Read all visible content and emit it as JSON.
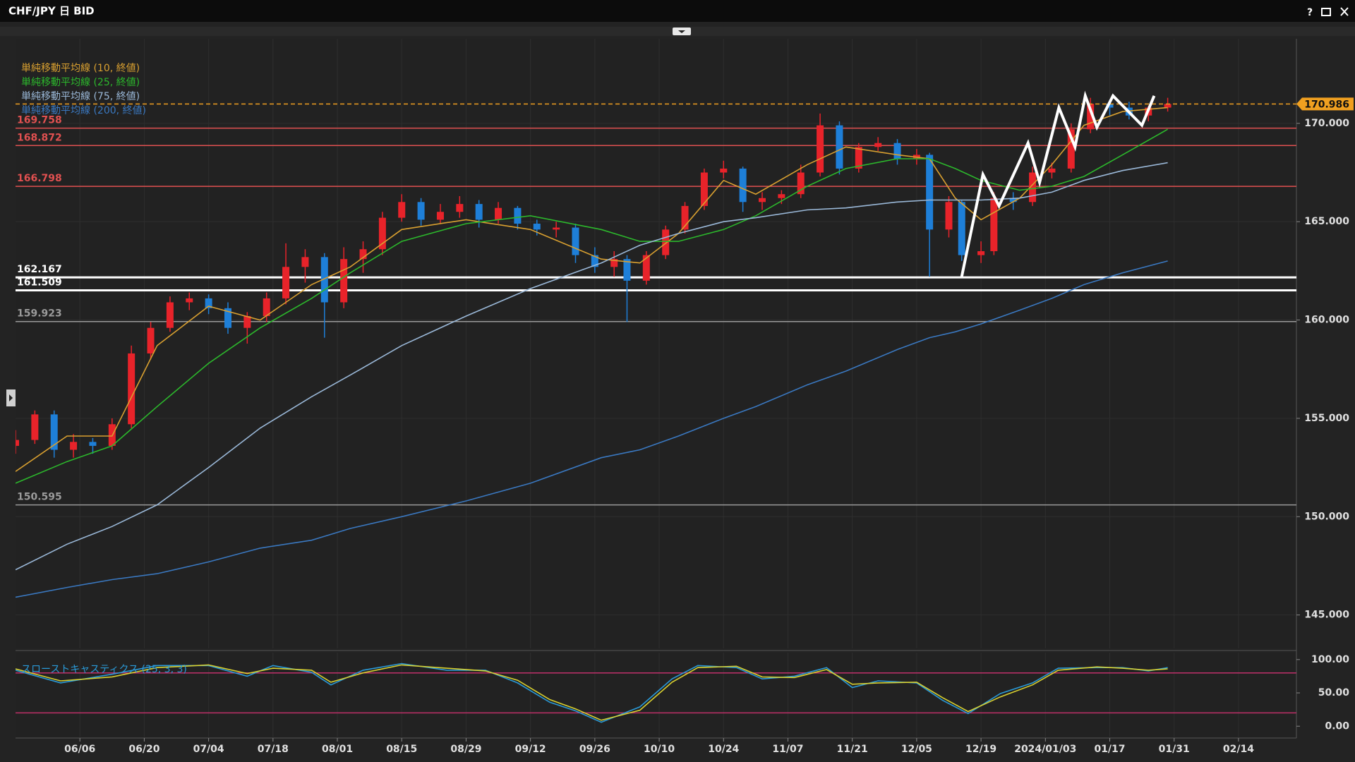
{
  "window": {
    "help": "?"
  },
  "chart_data": {
    "type": "candlestick",
    "title": "CHF/JPY 日 BID",
    "up_color": "#e8232a",
    "down_color": "#1e7fd8",
    "x": [
      0,
      3,
      6,
      9,
      12,
      15,
      18,
      21,
      24,
      27,
      30,
      33,
      36,
      39,
      42,
      45,
      48,
      51,
      54,
      57,
      60,
      63,
      66,
      69,
      72,
      75,
      78,
      81,
      84,
      87,
      90,
      93,
      95,
      98,
      101,
      104,
      107,
      110,
      113,
      116,
      119,
      122,
      125,
      128,
      131,
      134,
      137,
      140,
      142,
      145,
      147,
      150,
      152,
      155,
      158,
      161,
      164,
      167,
      170,
      173,
      176,
      179
    ],
    "open": [
      153.6,
      153.9,
      155.2,
      153.4,
      153.8,
      153.6,
      154.7,
      158.3,
      159.6,
      160.9,
      161.1,
      160.6,
      159.6,
      160.2,
      161.1,
      162.7,
      163.2,
      160.9,
      163.1,
      163.6,
      165.2,
      166.0,
      165.1,
      165.5,
      165.9,
      165.1,
      165.7,
      164.9,
      164.6,
      164.7,
      163.3,
      162.7,
      163.1,
      162.0,
      163.3,
      164.6,
      165.8,
      167.5,
      167.7,
      166.0,
      166.2,
      166.4,
      167.5,
      169.9,
      167.7,
      168.8,
      169.0,
      168.2,
      168.4,
      164.6,
      166.0,
      163.3,
      163.5,
      166.2,
      166.0,
      167.5,
      167.7,
      169.7,
      171.0,
      170.8,
      170.4,
      170.8
    ],
    "high": [
      154.4,
      155.4,
      155.4,
      154.2,
      154.0,
      155.0,
      158.7,
      159.9,
      161.2,
      161.4,
      161.3,
      160.9,
      160.4,
      161.4,
      163.9,
      163.6,
      163.4,
      163.7,
      164.0,
      165.5,
      166.4,
      166.2,
      165.9,
      166.3,
      166.1,
      166.0,
      165.8,
      165.1,
      165.0,
      164.9,
      163.7,
      163.5,
      163.3,
      163.5,
      164.8,
      166.0,
      167.7,
      168.1,
      167.8,
      166.5,
      166.6,
      167.9,
      170.5,
      170.1,
      169.0,
      169.3,
      169.2,
      168.7,
      168.5,
      166.3,
      166.1,
      164.0,
      166.5,
      166.5,
      167.8,
      168.0,
      170.0,
      171.3,
      171.2,
      171.1,
      170.9,
      171.3
    ],
    "low": [
      153.2,
      153.7,
      153.0,
      153.0,
      153.2,
      153.4,
      154.5,
      158.0,
      159.4,
      160.5,
      160.3,
      159.3,
      158.8,
      159.9,
      160.8,
      161.9,
      159.1,
      160.6,
      162.4,
      163.3,
      165.0,
      164.8,
      164.9,
      165.2,
      164.7,
      164.9,
      164.6,
      164.3,
      164.2,
      162.9,
      162.4,
      162.2,
      159.9,
      161.8,
      163.1,
      164.4,
      165.6,
      167.2,
      165.5,
      165.6,
      165.9,
      166.2,
      167.3,
      167.4,
      167.5,
      168.6,
      167.9,
      167.9,
      162.2,
      164.2,
      163.0,
      162.9,
      163.3,
      165.6,
      165.8,
      167.2,
      167.5,
      169.5,
      170.4,
      170.2,
      170.1,
      170.6
    ],
    "close": [
      153.9,
      155.2,
      153.4,
      153.8,
      153.6,
      154.7,
      158.3,
      159.6,
      160.9,
      161.1,
      160.6,
      159.6,
      160.2,
      161.1,
      162.7,
      163.2,
      160.9,
      163.1,
      163.6,
      165.2,
      166.0,
      165.1,
      165.5,
      165.9,
      165.1,
      165.7,
      164.9,
      164.6,
      164.7,
      163.3,
      162.7,
      163.1,
      162.0,
      163.3,
      164.6,
      165.8,
      167.5,
      167.7,
      166.0,
      166.2,
      166.4,
      167.5,
      169.9,
      167.7,
      168.8,
      169.0,
      168.2,
      168.4,
      164.6,
      166.0,
      163.3,
      163.5,
      166.2,
      166.0,
      167.5,
      167.7,
      169.7,
      171.0,
      170.8,
      170.4,
      170.8,
      170.986
    ],
    "xlim": [
      0,
      199
    ],
    "ylim": [
      143.3,
      174.3
    ],
    "xticks": [
      {
        "value": 10,
        "label": "06/06"
      },
      {
        "value": 20,
        "label": "06/20"
      },
      {
        "value": 30,
        "label": "07/04"
      },
      {
        "value": 40,
        "label": "07/18"
      },
      {
        "value": 50,
        "label": "08/01"
      },
      {
        "value": 60,
        "label": "08/15"
      },
      {
        "value": 70,
        "label": "08/29"
      },
      {
        "value": 80,
        "label": "09/12"
      },
      {
        "value": 90,
        "label": "09/26"
      },
      {
        "value": 100,
        "label": "10/10"
      },
      {
        "value": 110,
        "label": "10/24"
      },
      {
        "value": 120,
        "label": "11/07"
      },
      {
        "value": 130,
        "label": "11/21"
      },
      {
        "value": 140,
        "label": "12/05"
      },
      {
        "value": 150,
        "label": "12/19"
      },
      {
        "value": 160,
        "label": "2024/01/03"
      },
      {
        "value": 170,
        "label": "01/17"
      },
      {
        "value": 180,
        "label": "01/31"
      },
      {
        "value": 190,
        "label": "02/14"
      }
    ],
    "yticks": [
      {
        "value": 145,
        "label": "145.000"
      },
      {
        "value": 150,
        "label": "150.000"
      },
      {
        "value": 155,
        "label": "155.000"
      },
      {
        "value": 160,
        "label": "160.000"
      },
      {
        "value": 165,
        "label": "165.000"
      },
      {
        "value": 170,
        "label": "170.000"
      }
    ],
    "grid": true,
    "current_price": 170.986,
    "current_price_color": "#f0a020",
    "levels": [
      {
        "value": 169.758,
        "color": "#e05050"
      },
      {
        "value": 168.872,
        "color": "#e05050"
      },
      {
        "value": 166.798,
        "color": "#e05050"
      },
      {
        "value": 162.167,
        "color": "#ffffff"
      },
      {
        "value": 161.509,
        "color": "#ffffff"
      },
      {
        "value": 159.923,
        "color": "#9a9a9a"
      },
      {
        "value": 150.595,
        "color": "#9a9a9a"
      }
    ],
    "moving_averages": {
      "x": [
        0,
        8,
        15,
        22,
        30,
        38,
        46,
        52,
        60,
        70,
        80,
        91,
        97,
        103,
        110,
        115,
        123,
        129,
        137,
        142,
        146,
        150,
        156,
        161,
        166,
        172,
        179
      ],
      "series": [
        {
          "name": "単純移動平均線 (10, 終値)",
          "color": "#d9a030",
          "values": [
            152.3,
            154.1,
            154.1,
            158.7,
            160.7,
            160.0,
            161.8,
            162.7,
            164.6,
            165.1,
            164.6,
            163.1,
            162.9,
            164.4,
            167.1,
            166.4,
            167.9,
            168.8,
            168.4,
            168.2,
            166.2,
            165.1,
            166.2,
            167.9,
            169.9,
            170.6,
            170.8
          ]
        },
        {
          "name": "単純移動平均線 (25, 終値)",
          "color": "#2cb82c",
          "values": [
            151.7,
            152.8,
            153.6,
            155.6,
            157.8,
            159.6,
            161.1,
            162.4,
            164.0,
            164.9,
            165.3,
            164.6,
            164.0,
            164.0,
            164.6,
            165.3,
            166.8,
            167.7,
            168.2,
            168.2,
            167.7,
            167.1,
            166.6,
            166.8,
            167.3,
            168.4,
            169.7
          ]
        },
        {
          "name": "単純移動平均線 (75, 終値)",
          "color": "#9ab8d8",
          "values": [
            147.3,
            148.6,
            149.5,
            150.6,
            152.5,
            154.5,
            156.1,
            157.2,
            158.7,
            160.2,
            161.6,
            162.9,
            163.8,
            164.4,
            165.0,
            165.2,
            165.6,
            165.7,
            166.0,
            166.1,
            166.1,
            166.1,
            166.2,
            166.5,
            167.1,
            167.6,
            168.0
          ]
        },
        {
          "name": "単純移動平均線 (200, 終値)",
          "color": "#3a78c0",
          "values": [
            145.9,
            146.4,
            146.8,
            147.1,
            147.7,
            148.4,
            148.8,
            149.4,
            150.0,
            150.8,
            151.7,
            153.0,
            153.4,
            154.1,
            155.0,
            155.6,
            156.7,
            157.4,
            158.5,
            159.1,
            159.4,
            159.8,
            160.5,
            161.1,
            161.8,
            162.4,
            163.0
          ]
        }
      ]
    },
    "annotation": {
      "color": "#ffffff",
      "x": [
        147.0,
        150.3,
        152.8,
        157.3,
        159.1,
        162.1,
        164.6,
        166.2,
        168.0,
        170.5,
        175.0,
        176.9
      ],
      "y": [
        162.2,
        167.4,
        165.8,
        169.0,
        167.0,
        170.8,
        168.8,
        171.4,
        169.8,
        171.4,
        169.9,
        171.4
      ]
    },
    "stochastic": {
      "name": "スローストキャスティクス (25, 3, 3)",
      "ylim": [
        -15.6,
        110.4
      ],
      "yticks": [
        {
          "value": 0,
          "label": "0.00"
        },
        {
          "value": 50,
          "label": "50.00"
        },
        {
          "value": 100,
          "label": "100.00"
        }
      ],
      "levels": [
        80,
        20
      ],
      "level_color": "#c0306a",
      "x": [
        0,
        7,
        15,
        22,
        30,
        36,
        40,
        46,
        49,
        54,
        60,
        67,
        73,
        78,
        83,
        87,
        91,
        97,
        102,
        106,
        112,
        116,
        121,
        126,
        130,
        134,
        140,
        144,
        148,
        153,
        158,
        162,
        168,
        172,
        176,
        179
      ],
      "series": [
        {
          "color": "#2a9ad8",
          "values": [
            84,
            65,
            78,
            91,
            91,
            75,
            91,
            81,
            62,
            84,
            94,
            84,
            84,
            65,
            36,
            23,
            6,
            29,
            71,
            91,
            88,
            71,
            75,
            88,
            58,
            68,
            65,
            39,
            19,
            49,
            65,
            87,
            88,
            88,
            83,
            88
          ]
        },
        {
          "color": "#d8d030",
          "values": [
            86,
            68,
            74,
            88,
            92,
            79,
            87,
            84,
            66,
            80,
            92,
            87,
            83,
            69,
            40,
            26,
            9,
            24,
            66,
            88,
            90,
            74,
            73,
            85,
            63,
            65,
            66,
            43,
            22,
            44,
            62,
            84,
            89,
            87,
            84,
            86
          ]
        }
      ]
    }
  }
}
